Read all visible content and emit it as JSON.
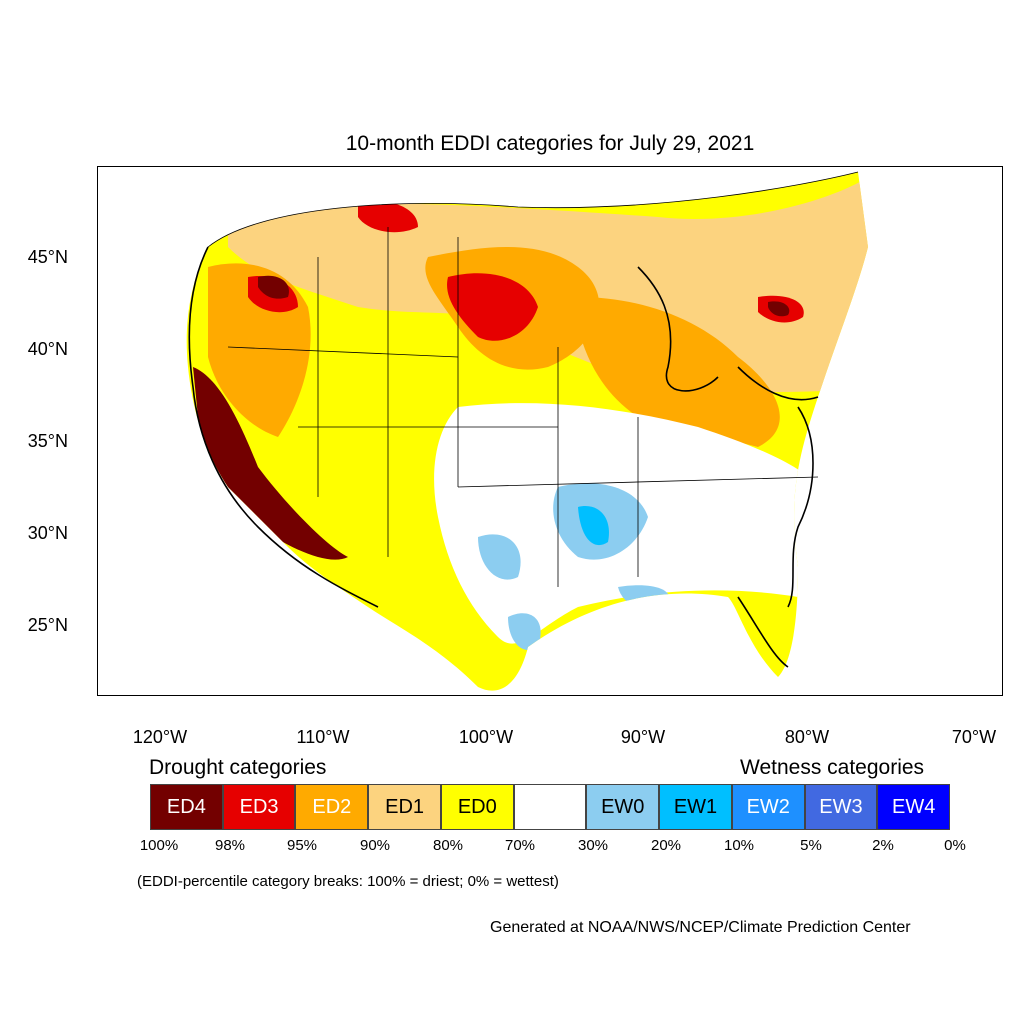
{
  "title": "10-month EDDI categories for July 29, 2021",
  "latitude_labels": [
    "45°N",
    "40°N",
    "35°N",
    "30°N",
    "25°N"
  ],
  "longitude_labels": [
    "120°W",
    "110°W",
    "100°W",
    "90°W",
    "80°W",
    "70°W"
  ],
  "legend": {
    "drought_heading": "Drought categories",
    "wetness_heading": "Wetness categories",
    "categories": [
      {
        "label": "ED4",
        "color": "#730000",
        "text_color": "#ffffff"
      },
      {
        "label": "ED3",
        "color": "#e60000",
        "text_color": "#ffffff"
      },
      {
        "label": "ED2",
        "color": "#ffaa00",
        "text_color": "#ffffff"
      },
      {
        "label": "ED1",
        "color": "#fcd37f",
        "text_color": "#000000"
      },
      {
        "label": "ED0",
        "color": "#ffff00",
        "text_color": "#000000"
      },
      {
        "label": "",
        "color": "#ffffff",
        "text_color": "#000000"
      },
      {
        "label": "EW0",
        "color": "#8ccdf0",
        "text_color": "#000000"
      },
      {
        "label": "EW1",
        "color": "#00bfff",
        "text_color": "#000000"
      },
      {
        "label": "EW2",
        "color": "#1e90ff",
        "text_color": "#ffffff"
      },
      {
        "label": "EW3",
        "color": "#4169e1",
        "text_color": "#ffffff"
      },
      {
        "label": "EW4",
        "color": "#0000ff",
        "text_color": "#ffffff"
      }
    ],
    "breaks": [
      "100%",
      "98%",
      "95%",
      "90%",
      "80%",
      "70%",
      "30%",
      "20%",
      "10%",
      "5%",
      "2%",
      "0%"
    ]
  },
  "break_note": "(EDDI-percentile category breaks: 100% = driest; 0% = wettest)",
  "credit": "Generated at NOAA/NWS/NCEP/Climate Prediction Center",
  "colors": {
    "ed4": "#730000",
    "ed3": "#e60000",
    "ed2": "#ffaa00",
    "ed1": "#fcd37f",
    "ed0": "#ffff00",
    "ew0": "#8ccdf0",
    "ew1": "#00bfff"
  }
}
